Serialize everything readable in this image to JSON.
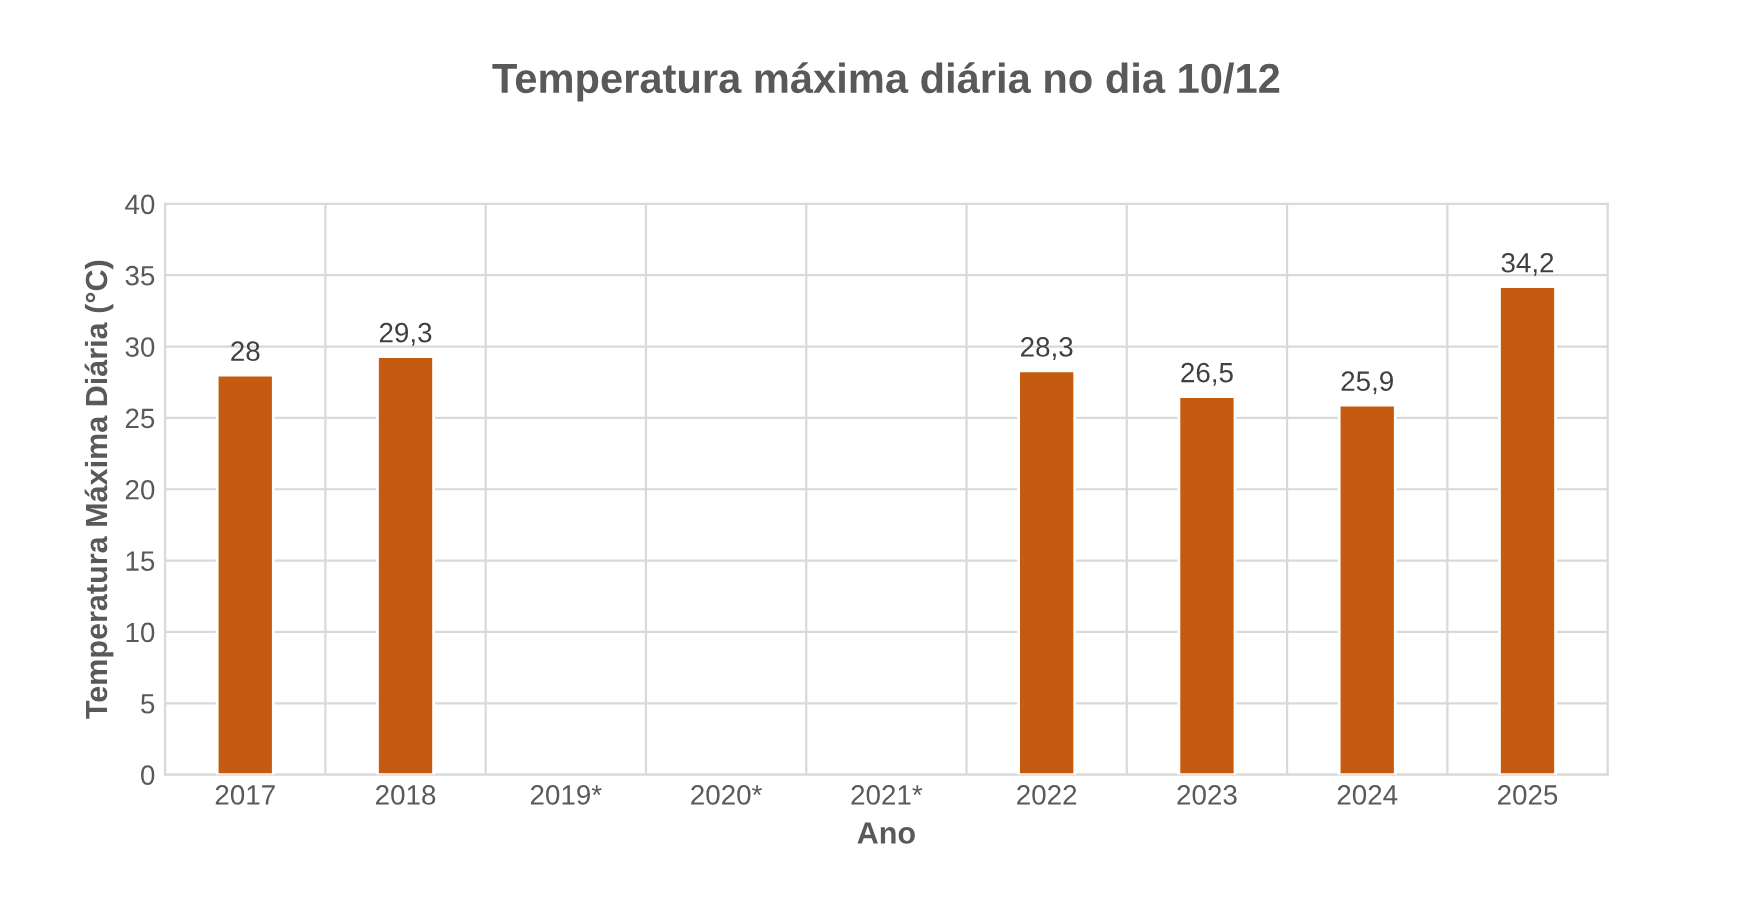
{
  "chart_data": {
    "type": "bar",
    "title": "Temperatura máxima diária no dia 10/12",
    "xlabel": "Ano",
    "ylabel": "Temperatura Máxima Diária (°C)",
    "categories": [
      "2017",
      "2018",
      "2019*",
      "2020*",
      "2021*",
      "2022",
      "2023",
      "2024",
      "2025"
    ],
    "values": [
      28,
      29.3,
      null,
      null,
      null,
      28.3,
      26.5,
      25.9,
      34.2
    ],
    "value_labels": [
      "28",
      "29,3",
      null,
      null,
      null,
      "28,3",
      "26,5",
      "25,9",
      "34,2"
    ],
    "color": "#c55a11",
    "ylim": [
      0,
      40
    ],
    "yticks": [
      0,
      5,
      10,
      15,
      20,
      25,
      30,
      35,
      40
    ],
    "grid": true,
    "legend": false
  }
}
